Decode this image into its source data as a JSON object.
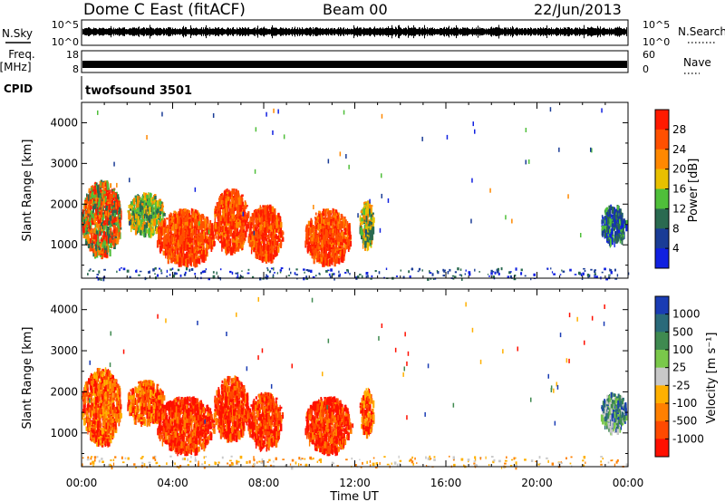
{
  "header": {
    "title": "Dome C East (fitACF)",
    "beam": "Beam 00",
    "date": "22/Jun/2013"
  },
  "top_panels": {
    "nsky_label": "N.Sky",
    "nsearch_label": "N.Search",
    "noise_ticks": [
      "10^5",
      "10^0"
    ],
    "freq_label_line1": "Freq.",
    "freq_label_line2": "[MHz]",
    "freq_ticks": [
      "18",
      "8"
    ],
    "nave_label": "Nave",
    "nave_ticks": [
      "60",
      "0"
    ],
    "cpid_label": "CPID",
    "cpid_value": "twofsound 3501"
  },
  "colors": {
    "power_scale": [
      "#1020e0",
      "#1a3c96",
      "#2a6a50",
      "#4fbf3a",
      "#e8c000",
      "#ff8800",
      "#ff5000",
      "#ff1a00"
    ],
    "velocity_scale": [
      "#1a3cb4",
      "#2a6a7a",
      "#3f8a50",
      "#7ac84a",
      "#c8c8c8",
      "#ffb000",
      "#ff8000",
      "#ff4a00",
      "#ff1000"
    ]
  },
  "chart_data": [
    {
      "type": "heatmap",
      "title": "",
      "xlabel": "Time UT",
      "ylabel": "Slant Range [km]",
      "xlim": [
        "00:00",
        "24:00"
      ],
      "ylim": [
        180,
        4500
      ],
      "x_ticks": [
        "00:00",
        "04:00",
        "08:00",
        "12:00",
        "16:00",
        "20:00",
        "00:00"
      ],
      "y_ticks": [
        1000,
        2000,
        3000,
        4000
      ],
      "colorbar": {
        "label": "Power [dB]",
        "range": [
          0,
          32
        ],
        "ticks": [
          28,
          24,
          20,
          16,
          12,
          8,
          4
        ]
      },
      "echo_regions": [
        {
          "t_start": 0.0,
          "t_end": 1.7,
          "range_min": 800,
          "range_max": 2600,
          "level": "medium-high"
        },
        {
          "t_start": 2.0,
          "t_end": 3.6,
          "range_min": 1300,
          "range_max": 2300,
          "level": "low-medium"
        },
        {
          "t_start": 3.3,
          "t_end": 5.8,
          "range_min": 600,
          "range_max": 1900,
          "level": "high"
        },
        {
          "t_start": 5.8,
          "t_end": 7.3,
          "range_min": 900,
          "range_max": 2400,
          "level": "high"
        },
        {
          "t_start": 7.3,
          "t_end": 8.8,
          "range_min": 700,
          "range_max": 2000,
          "level": "high"
        },
        {
          "t_start": 9.8,
          "t_end": 11.8,
          "range_min": 600,
          "range_max": 1900,
          "level": "high"
        },
        {
          "t_start": 12.2,
          "t_end": 12.8,
          "range_min": 1000,
          "range_max": 2100,
          "level": "medium"
        },
        {
          "t_start": 22.8,
          "t_end": 23.9,
          "range_min": 1100,
          "range_max": 2000,
          "level": "low"
        },
        {
          "t_start": 0.0,
          "t_end": 24.0,
          "range_min": 180,
          "range_max": 450,
          "level": "low"
        }
      ]
    },
    {
      "type": "heatmap",
      "title": "",
      "xlabel": "Time UT",
      "ylabel": "Slant Range [km]",
      "xlim": [
        "00:00",
        "24:00"
      ],
      "ylim": [
        180,
        4500
      ],
      "x_ticks": [
        "00:00",
        "04:00",
        "08:00",
        "12:00",
        "16:00",
        "20:00",
        "00:00"
      ],
      "y_ticks": [
        1000,
        2000,
        3000,
        4000
      ],
      "colorbar": {
        "label": "Velocity [m s⁻¹]",
        "ticks": [
          "1000",
          "500",
          "100",
          "25",
          "-25",
          "-100",
          "-500",
          "-1000"
        ]
      },
      "echo_regions": [
        {
          "t_start": 0.0,
          "t_end": 1.7,
          "range_min": 800,
          "range_max": 2600,
          "velocity": -500
        },
        {
          "t_start": 2.0,
          "t_end": 3.6,
          "range_min": 1300,
          "range_max": 2300,
          "velocity": -300
        },
        {
          "t_start": 3.3,
          "t_end": 5.8,
          "range_min": 600,
          "range_max": 1900,
          "velocity": -700
        },
        {
          "t_start": 5.8,
          "t_end": 7.3,
          "range_min": 900,
          "range_max": 2400,
          "velocity": -700
        },
        {
          "t_start": 7.3,
          "t_end": 8.8,
          "range_min": 700,
          "range_max": 2000,
          "velocity": -800
        },
        {
          "t_start": 9.8,
          "t_end": 11.8,
          "range_min": 600,
          "range_max": 1900,
          "velocity": -600
        },
        {
          "t_start": 12.2,
          "t_end": 12.8,
          "range_min": 1000,
          "range_max": 2100,
          "velocity": -300
        },
        {
          "t_start": 22.8,
          "t_end": 23.9,
          "range_min": 1100,
          "range_max": 2000,
          "velocity": 100
        },
        {
          "t_start": 0.0,
          "t_end": 24.0,
          "range_min": 180,
          "range_max": 450,
          "velocity": -100
        }
      ]
    }
  ]
}
